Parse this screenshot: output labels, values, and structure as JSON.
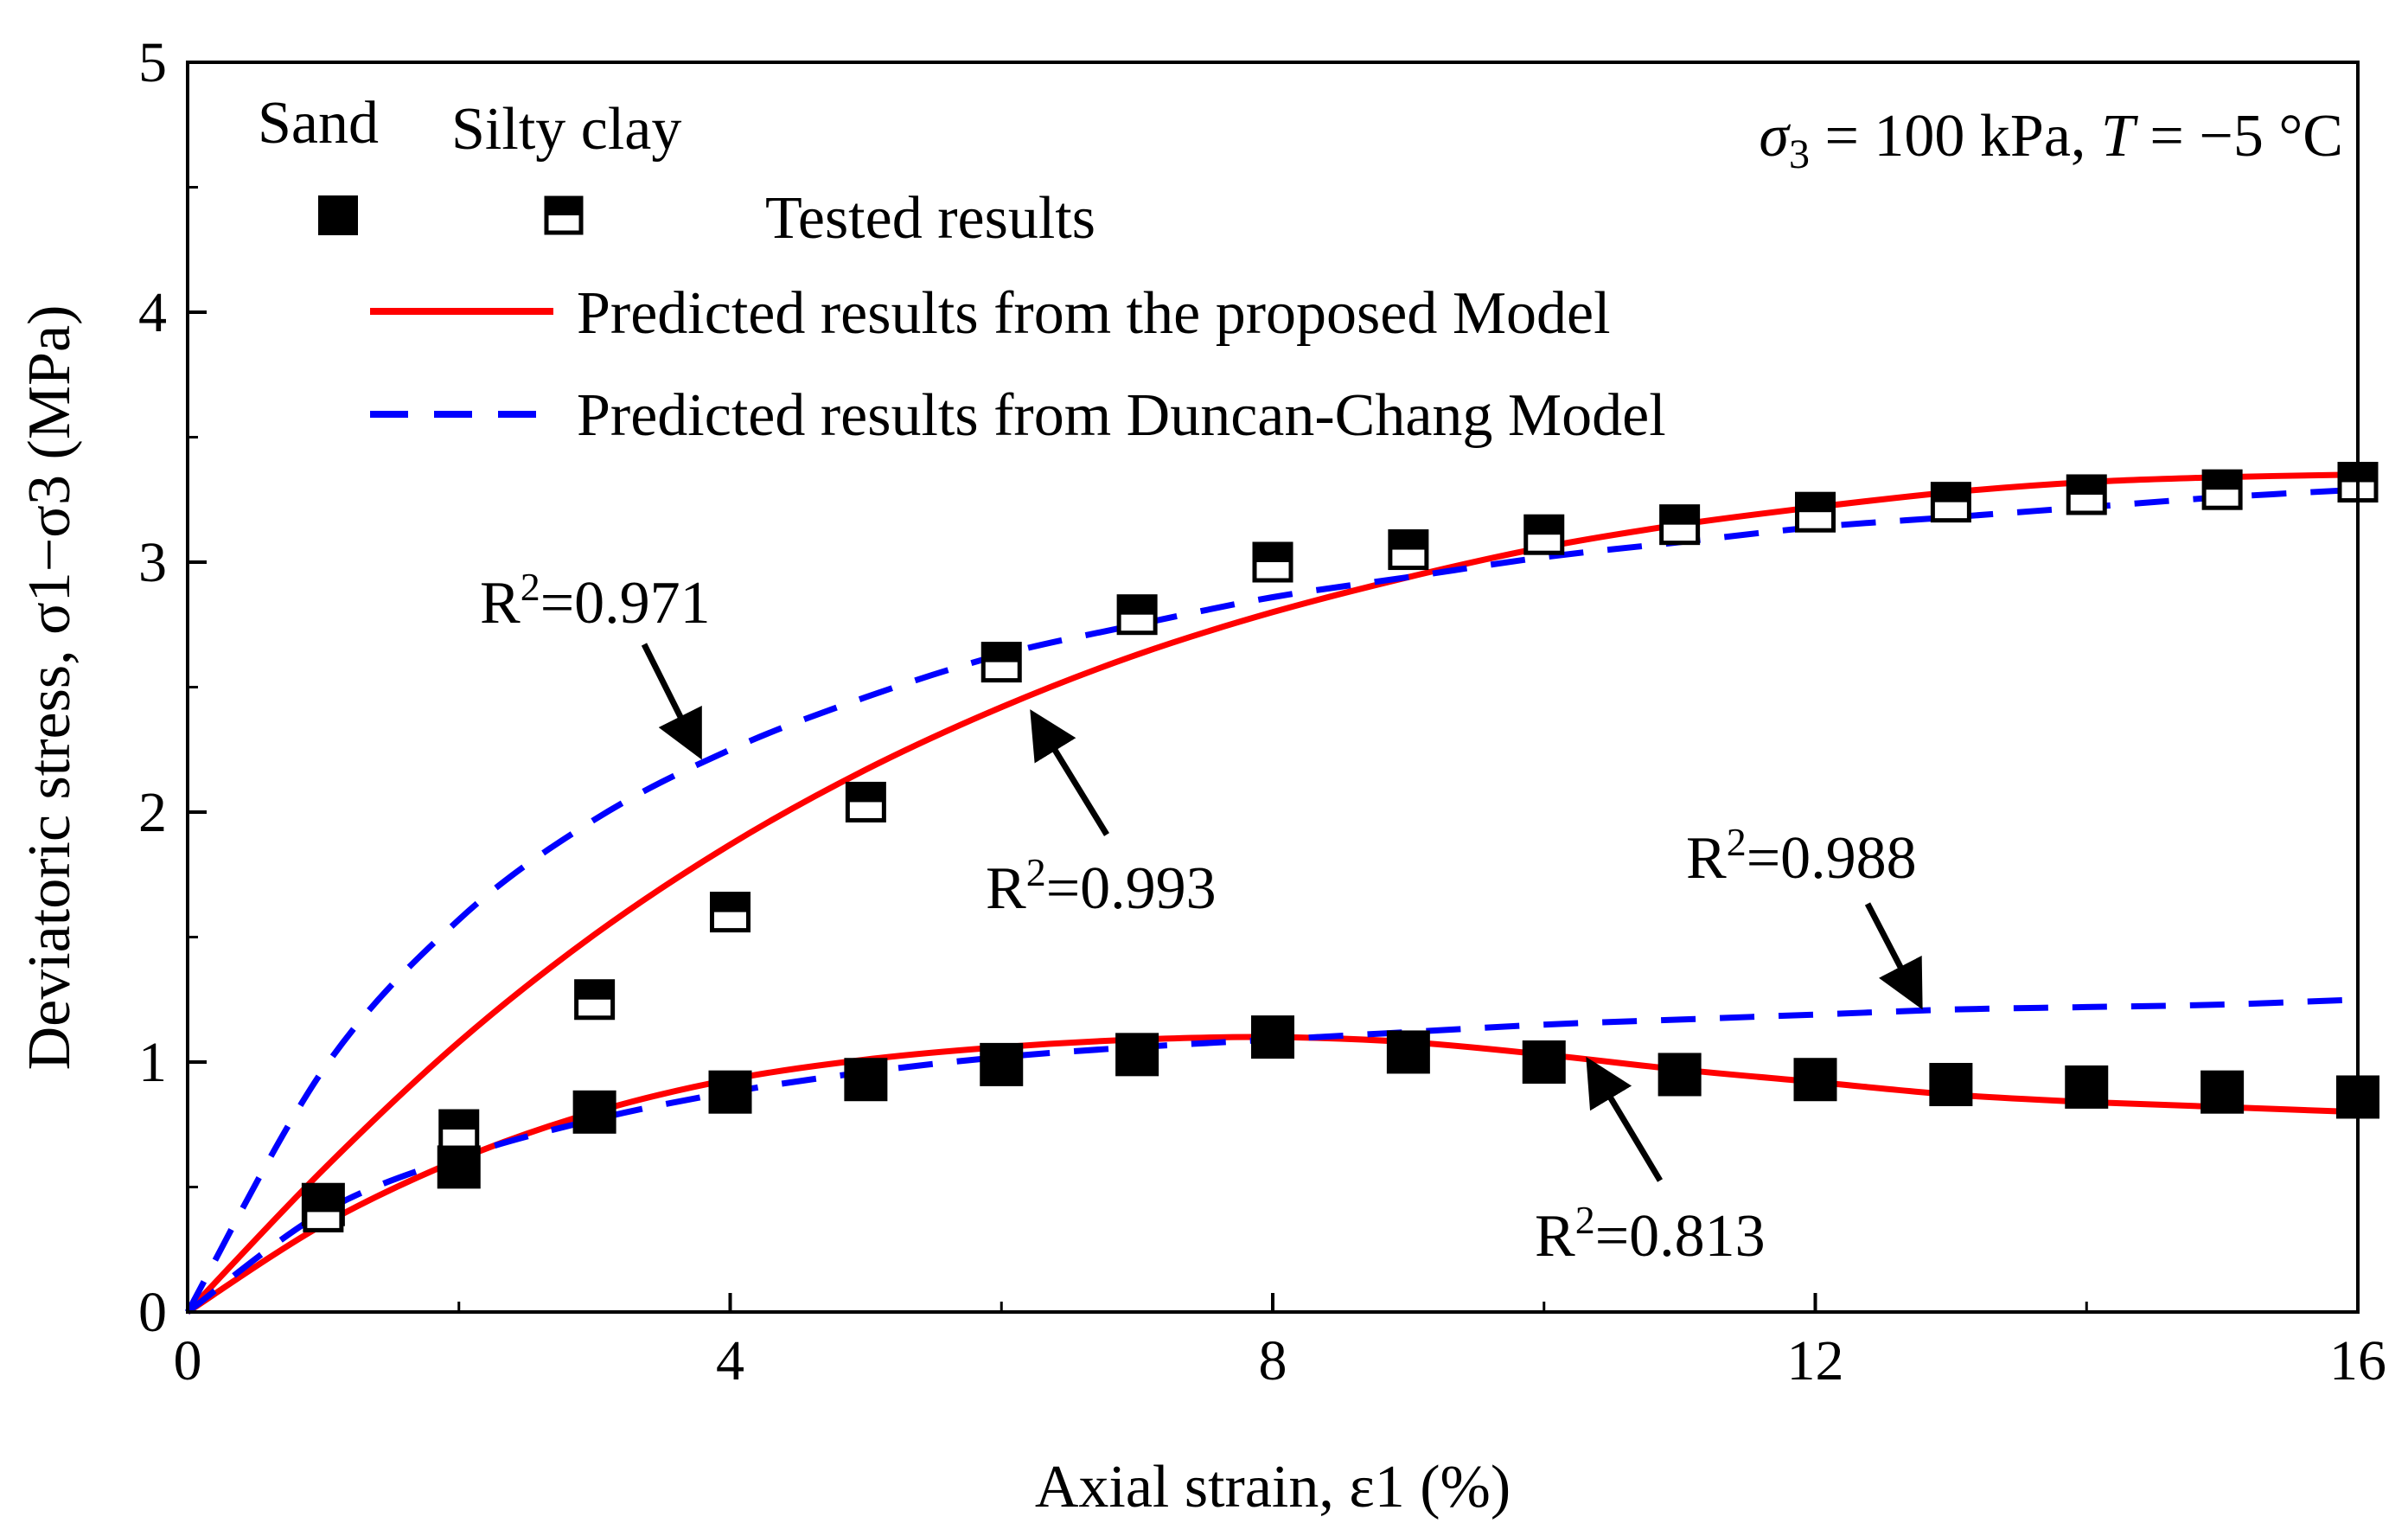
{
  "chart_data": {
    "type": "line",
    "title": "",
    "condition_text": "σ3 = 100 kPa, T = −5 °C",
    "xlabel": "Axial strain, ε1 (%)",
    "ylabel": "Deviatoric stress, σ1−σ3 (MPa)",
    "xlim": [
      0,
      16
    ],
    "ylim": [
      0,
      5
    ],
    "x_ticks": [
      0,
      4,
      8,
      12,
      16
    ],
    "y_ticks": [
      0,
      1,
      2,
      3,
      4,
      5
    ],
    "grid": false,
    "legend": {
      "placement": "top",
      "col_header_1": "Sand",
      "col_header_2": "Silty clay",
      "tested_label": "Tested results",
      "proposed_label": "Predicted results from the proposed Model",
      "duncan_label": "Predicted results from Duncan-Chang Model"
    },
    "colors": {
      "proposed": "#ff0000",
      "duncan": "#0000ff",
      "markers": "#000000"
    },
    "series": [
      {
        "name": "Tested results",
        "soil": "Sand",
        "marker": "filled-square",
        "x": [
          1,
          2,
          3,
          4,
          5,
          6,
          7,
          8,
          9,
          10,
          11,
          12,
          13,
          14,
          15,
          16
        ],
        "y": [
          0.43,
          0.58,
          0.8,
          0.88,
          0.93,
          0.99,
          1.03,
          1.1,
          1.04,
          1.0,
          0.95,
          0.93,
          0.91,
          0.9,
          0.88,
          0.86
        ]
      },
      {
        "name": "Tested results",
        "soil": "Silty clay",
        "marker": "half-filled-square",
        "x": [
          1,
          2,
          3,
          4,
          5,
          6,
          7,
          8,
          9,
          10,
          11,
          12,
          13,
          14,
          15,
          16
        ],
        "y": [
          0.4,
          0.73,
          1.25,
          1.6,
          2.04,
          2.6,
          2.79,
          3.0,
          3.05,
          3.11,
          3.15,
          3.2,
          3.24,
          3.27,
          3.29,
          3.32
        ]
      },
      {
        "name": "Predicted results from the proposed Model",
        "soil": "Silty clay",
        "style": "solid",
        "x": [
          0,
          1,
          2,
          3,
          4,
          5,
          6,
          7,
          8,
          9,
          10,
          11,
          12,
          13,
          14,
          15,
          16
        ],
        "y": [
          0,
          0.57,
          1.08,
          1.51,
          1.87,
          2.17,
          2.42,
          2.63,
          2.8,
          2.94,
          3.06,
          3.15,
          3.22,
          3.28,
          3.32,
          3.34,
          3.35
        ]
      },
      {
        "name": "Predicted results from the proposed Model",
        "soil": "Sand",
        "style": "solid",
        "x": [
          0,
          1,
          2,
          3,
          4,
          5,
          6,
          7,
          8,
          9,
          10,
          11,
          12,
          13,
          14,
          15,
          16
        ],
        "y": [
          0,
          0.35,
          0.61,
          0.8,
          0.93,
          1.01,
          1.06,
          1.09,
          1.1,
          1.08,
          1.03,
          0.97,
          0.92,
          0.87,
          0.84,
          0.82,
          0.8
        ]
      },
      {
        "name": "Predicted results from Duncan-Chang Model",
        "soil": "Silty clay",
        "style": "dashed",
        "x": [
          0,
          1,
          2,
          3,
          4,
          5,
          6,
          7,
          8,
          9,
          10,
          11,
          12,
          13,
          14,
          15,
          16
        ],
        "y": [
          0,
          0.97,
          1.57,
          1.97,
          2.25,
          2.46,
          2.63,
          2.75,
          2.86,
          2.94,
          3.02,
          3.08,
          3.14,
          3.18,
          3.22,
          3.26,
          3.29
        ]
      },
      {
        "name": "Predicted results from Duncan-Chang Model",
        "soil": "Sand",
        "style": "dashed",
        "x": [
          0,
          1,
          2,
          3,
          4,
          5,
          6,
          7,
          8,
          9,
          10,
          11,
          12,
          13,
          14,
          15,
          16
        ],
        "y": [
          0,
          0.4,
          0.62,
          0.77,
          0.88,
          0.96,
          1.02,
          1.06,
          1.09,
          1.12,
          1.15,
          1.17,
          1.19,
          1.21,
          1.22,
          1.23,
          1.25
        ]
      }
    ],
    "annotations": [
      {
        "label": "R²=0.971",
        "points_to": [
          3.8,
          2.2
        ]
      },
      {
        "label": "R²=0.993",
        "points_to": [
          6.2,
          2.42
        ]
      },
      {
        "label": "R²=0.988",
        "points_to": [
          12.8,
          1.2
        ]
      },
      {
        "label": "R²=0.813",
        "points_to": [
          10.3,
          1.03
        ]
      }
    ]
  }
}
